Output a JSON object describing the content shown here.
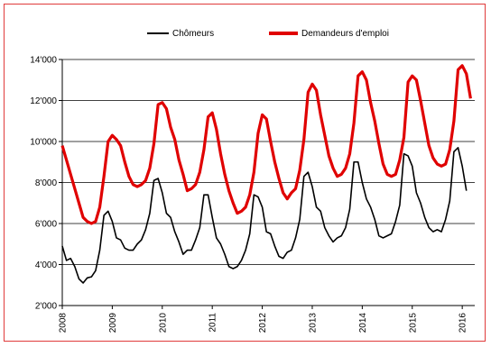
{
  "chart_data": {
    "type": "line",
    "title": "",
    "xlabel": "",
    "ylabel": "",
    "xlim": [
      2008,
      2016.25
    ],
    "ylim": [
      2000,
      14000
    ],
    "y_ticks": [
      2000,
      4000,
      6000,
      8000,
      10000,
      12000,
      14000
    ],
    "y_tick_labels": [
      "2'000",
      "4'000",
      "6'000",
      "8'000",
      "10'000",
      "12'000",
      "14'000"
    ],
    "x_ticks": [
      2008,
      2009,
      2010,
      2011,
      2012,
      2013,
      2014,
      2015,
      2016
    ],
    "x_tick_labels": [
      "2008",
      "2009",
      "2010",
      "2011",
      "2012",
      "2013",
      "2014",
      "2015",
      "2016"
    ],
    "grid": "horizontal",
    "legend_position": "top",
    "colors": {
      "chomeurs": "#000000",
      "demandeurs": "#e00000",
      "grid": "#000000",
      "frame": "#e03b3b"
    },
    "series": [
      {
        "name": "Chômeurs",
        "x_start": 2008.0,
        "step": 0.08333,
        "values": [
          4900,
          4200,
          4300,
          3900,
          3300,
          3100,
          3350,
          3400,
          3700,
          4700,
          6400,
          6600,
          6100,
          5300,
          5200,
          4800,
          4700,
          4700,
          5000,
          5200,
          5700,
          6500,
          8100,
          8200,
          7500,
          6500,
          6300,
          5600,
          5100,
          4500,
          4700,
          4700,
          5200,
          5800,
          7400,
          7400,
          6300,
          5300,
          5000,
          4500,
          3900,
          3800,
          3900,
          4200,
          4700,
          5500,
          7400,
          7300,
          6800,
          5600,
          5500,
          4900,
          4400,
          4300,
          4600,
          4700,
          5300,
          6200,
          8300,
          8500,
          7800,
          6800,
          6600,
          5800,
          5400,
          5100,
          5300,
          5400,
          5800,
          6700,
          9000,
          9000,
          8000,
          7200,
          6800,
          6200,
          5400,
          5300,
          5400,
          5500,
          6100,
          6900,
          9400,
          9300,
          8800,
          7500,
          7000,
          6300,
          5800,
          5600,
          5700,
          5600,
          6200,
          7100,
          9500,
          9700,
          8800,
          7600
        ]
      },
      {
        "name": "Demandeurs d'emploi",
        "x_start": 2008.0,
        "step": 0.08333,
        "values": [
          9800,
          9100,
          8400,
          7700,
          7000,
          6300,
          6100,
          6000,
          6100,
          6800,
          8300,
          10000,
          10300,
          10100,
          9800,
          9000,
          8300,
          7900,
          7800,
          7900,
          8100,
          8700,
          9900,
          11800,
          11900,
          11600,
          10700,
          10100,
          9100,
          8400,
          7600,
          7700,
          7900,
          8500,
          9600,
          11200,
          11400,
          10600,
          9400,
          8400,
          7600,
          7000,
          6500,
          6600,
          6800,
          7400,
          8500,
          10400,
          11300,
          11100,
          10000,
          9000,
          8200,
          7500,
          7200,
          7500,
          7700,
          8600,
          10100,
          12400,
          12800,
          12500,
          11300,
          10300,
          9300,
          8700,
          8300,
          8400,
          8700,
          9400,
          10900,
          13200,
          13400,
          13000,
          11900,
          11000,
          9900,
          8900,
          8400,
          8300,
          8400,
          9100,
          10200,
          12900,
          13200,
          13000,
          12000,
          10900,
          9800,
          9200,
          8900,
          8800,
          8900,
          9600,
          11000,
          13500,
          13700,
          13300,
          12100
        ]
      }
    ]
  }
}
